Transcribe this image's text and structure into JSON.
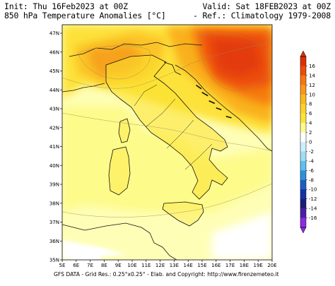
{
  "header": {
    "init": "Init: Thu 16Feb2023 at 00Z",
    "valid": "Valid: Sat 18FEB2023 at 00Z",
    "variable": "850 hPa Temperature Anomalies [°C]",
    "reference": "- Ref.: Climatology 1979-2008"
  },
  "map": {
    "lon_labels": [
      "5E",
      "6E",
      "7E",
      "8E",
      "9E",
      "10E",
      "11E",
      "12E",
      "13E",
      "14E",
      "15E",
      "16E",
      "17E",
      "18E",
      "19E",
      "20E"
    ],
    "lat_labels": [
      "47N",
      "46N",
      "45N",
      "44N",
      "43N",
      "42N",
      "41N",
      "40N",
      "39N",
      "38N",
      "37N",
      "36N",
      "35N"
    ],
    "region": "Italy",
    "colors": {
      "ocean": "#fdfda0",
      "land": "#f8ec2d",
      "border": "#111111"
    }
  },
  "colorbar": {
    "labels": [
      "16",
      "14",
      "12",
      "10",
      "8",
      "6",
      "4",
      "2",
      "0",
      "-2",
      "-4",
      "-6",
      "-8",
      "-10",
      "-12",
      "-14",
      "-16"
    ],
    "colors": [
      "#dc2f08",
      "#ec4d0b",
      "#f7770f",
      "#f9971a",
      "#fbb81e",
      "#fcd22a",
      "#fbe33c",
      "#fdfb8e",
      "#ffffff",
      "#cdeffb",
      "#9fdcf6",
      "#5ec0ee",
      "#2e93d8",
      "#1e5ec2",
      "#1632a6",
      "#1c1f73",
      "#4b1fa3",
      "#8a2be2"
    ]
  },
  "footer": "GFS DATA - Grid Res.: 0.25°x0.25° - Elab. and Copyright: http://www.firenzemeteo.it"
}
